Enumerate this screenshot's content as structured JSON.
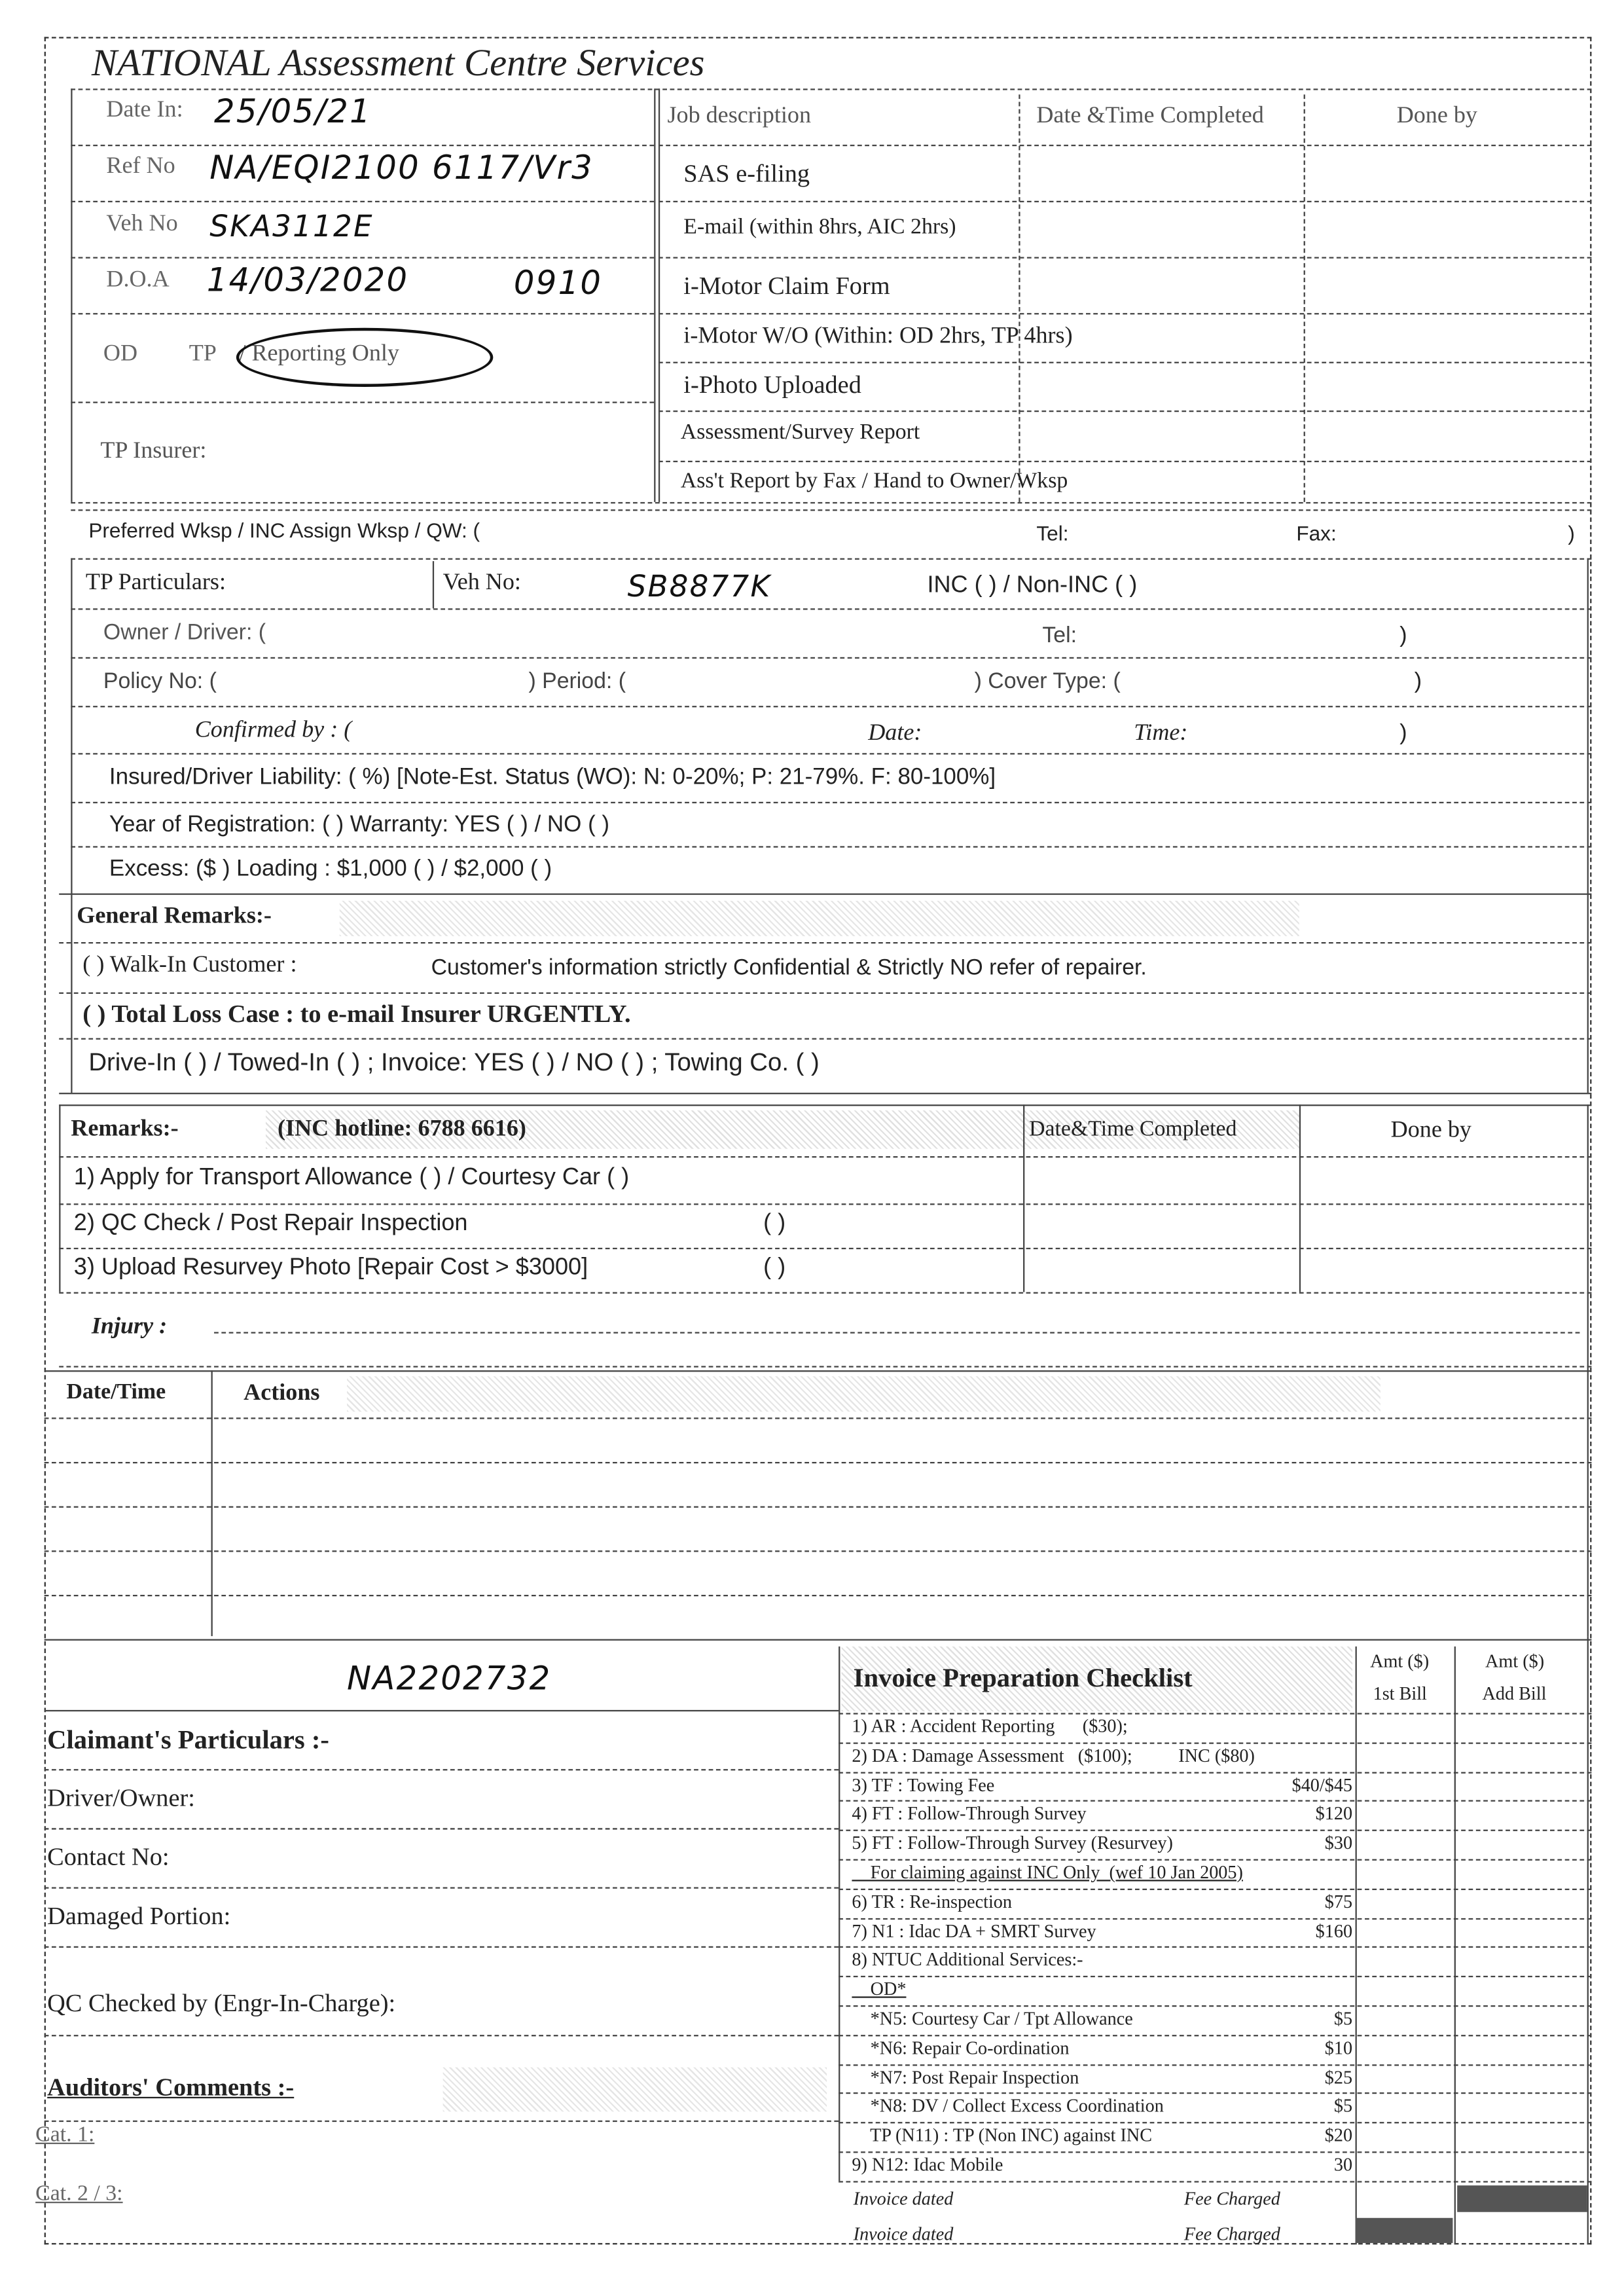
{
  "header": {
    "title": "NATIONAL Assessment Centre Services"
  },
  "top_left": {
    "date_in_label": "Date In:",
    "date_in_value": "25/05/21",
    "ref_no_label": "Ref No",
    "ref_no_value": "NA/EQI2100 6117/Vr3",
    "veh_no_label": "Veh No",
    "veh_no_value": "SKA3112E",
    "doa_label": "D.O.A",
    "doa_value": "14/03/2020",
    "doa_time": "0910",
    "od_label": "OD",
    "tp_label": "TP",
    "reporting_only": "/ Reporting Only",
    "tp_insurer_label": "TP Insurer:"
  },
  "jobs": {
    "headers": [
      "Job description",
      "Date &Time Completed",
      "Done by"
    ],
    "items": [
      "SAS e-filing",
      "E-mail (within 8hrs, AIC 2hrs)",
      "i-Motor Claim Form",
      "i-Motor W/O (Within: OD 2hrs, TP 4hrs)",
      "i-Photo Uploaded",
      "Assessment/Survey Report",
      "Ass't Report by Fax / Hand to Owner/Wksp"
    ]
  },
  "workshop": {
    "label": "Preferred Wksp / INC Assign Wksp / QW: (",
    "tel": "Tel:",
    "fax": "Fax:",
    "close": ")"
  },
  "tp": {
    "particulars": "TP Particulars:",
    "veh_no_label": "Veh No:",
    "veh_no_value": "SB8877K",
    "inc": "INC (      ) / Non-INC (      )",
    "owner": "Owner / Driver: (",
    "tel": "Tel:",
    "close": ")",
    "policy": "Policy No: (",
    "period": ")     Period: (",
    "cover": ")     Cover Type: (",
    "confirmed": "Confirmed by : (",
    "date": "Date:",
    "time": "Time:",
    "liability": "Insured/Driver Liability:  (               %)  [Note-Est. Status (WO):   N: 0-20%;   P: 21-79%.   F: 80-100%]",
    "year": "Year of Registration: (                              )    Warranty: YES (       ) / NO (       )",
    "excess": "Excess: ($                              )     Loading : $1,000 (       ) / $2,000 (       )"
  },
  "general": {
    "title": "General Remarks:-",
    "walk_in": "(       ) Walk-In Customer :",
    "walk_in_note": "Customer's information strictly Confidential & Strictly NO refer of repairer.",
    "total_loss": "(       ) Total Loss Case    : to e-mail Insurer URGENTLY.",
    "drive_in": "Drive-In (        ) / Towed-In (        ) ; Invoice: YES (        )  /  NO (        )  ; Towing Co. (                                                          )"
  },
  "remarks": {
    "title": "Remarks:-",
    "hotline": "(INC hotline: 6788 6616)",
    "col_date": "Date&Time Completed",
    "col_done": "Done by",
    "items": [
      "1) Apply for Transport Allowance (       ) / Courtesy Car (       )",
      "2) QC Check / Post Repair Inspection",
      "3) Upload Resurvey Photo [Repair Cost > $3000]"
    ],
    "bracket": "(       )",
    "injury": "Injury :"
  },
  "actions": {
    "col_date": "Date/Time",
    "col_actions": "Actions"
  },
  "claimant": {
    "ref_handwritten": "NA2202732",
    "title": "Claimant's Particulars :-",
    "driver": "Driver/Owner:",
    "contact": "Contact No:",
    "damaged": "Damaged Portion:",
    "qc": "QC Checked by (Engr-In-Charge):",
    "auditors": "Auditors' Comments :-",
    "cat1": "Cat. 1:",
    "cat23": "Cat. 2 / 3:"
  },
  "checklist": {
    "title": "Invoice Preparation Checklist",
    "amt1": "Amt ($)",
    "bill1": "1st Bill",
    "amt2": "Amt ($)",
    "bill2": "Add Bill",
    "rows": [
      {
        "label": "1) AR : Accident Reporting      ($30);",
        "price": ""
      },
      {
        "label": "2) DA : Damage Assessment   ($100);          INC ($80)",
        "price": ""
      },
      {
        "label": "3) TF : Towing Fee",
        "price": "$40/$45"
      },
      {
        "label": "4) FT : Follow-Through Survey",
        "price": "$120"
      },
      {
        "label": "5) FT : Follow-Through Survey (Resurvey)",
        "price": "$30"
      },
      {
        "label": "    For claiming against INC Only  (wef 10 Jan 2005)",
        "price": ""
      },
      {
        "label": "6) TR : Re-inspection",
        "price": "$75"
      },
      {
        "label": "7) N1 : Idac DA + SMRT Survey",
        "price": "$160"
      },
      {
        "label": "8) NTUC Additional Services:-",
        "price": ""
      },
      {
        "label": "    OD*",
        "price": ""
      },
      {
        "label": "    *N5: Courtesy Car / Tpt Allowance",
        "price": "$5"
      },
      {
        "label": "    *N6: Repair Co-ordination",
        "price": "$10"
      },
      {
        "label": "    *N7: Post Repair Inspection",
        "price": "$25"
      },
      {
        "label": "    *N8: DV / Collect Excess Coordination",
        "price": "$5"
      },
      {
        "label": "    TP (N11) : TP (Non INC) against INC",
        "price": "$20"
      },
      {
        "label": "9) N12: Idac Mobile",
        "price": "30"
      }
    ],
    "invoice_dated": "Invoice dated",
    "fee_charged": "Fee Charged"
  }
}
